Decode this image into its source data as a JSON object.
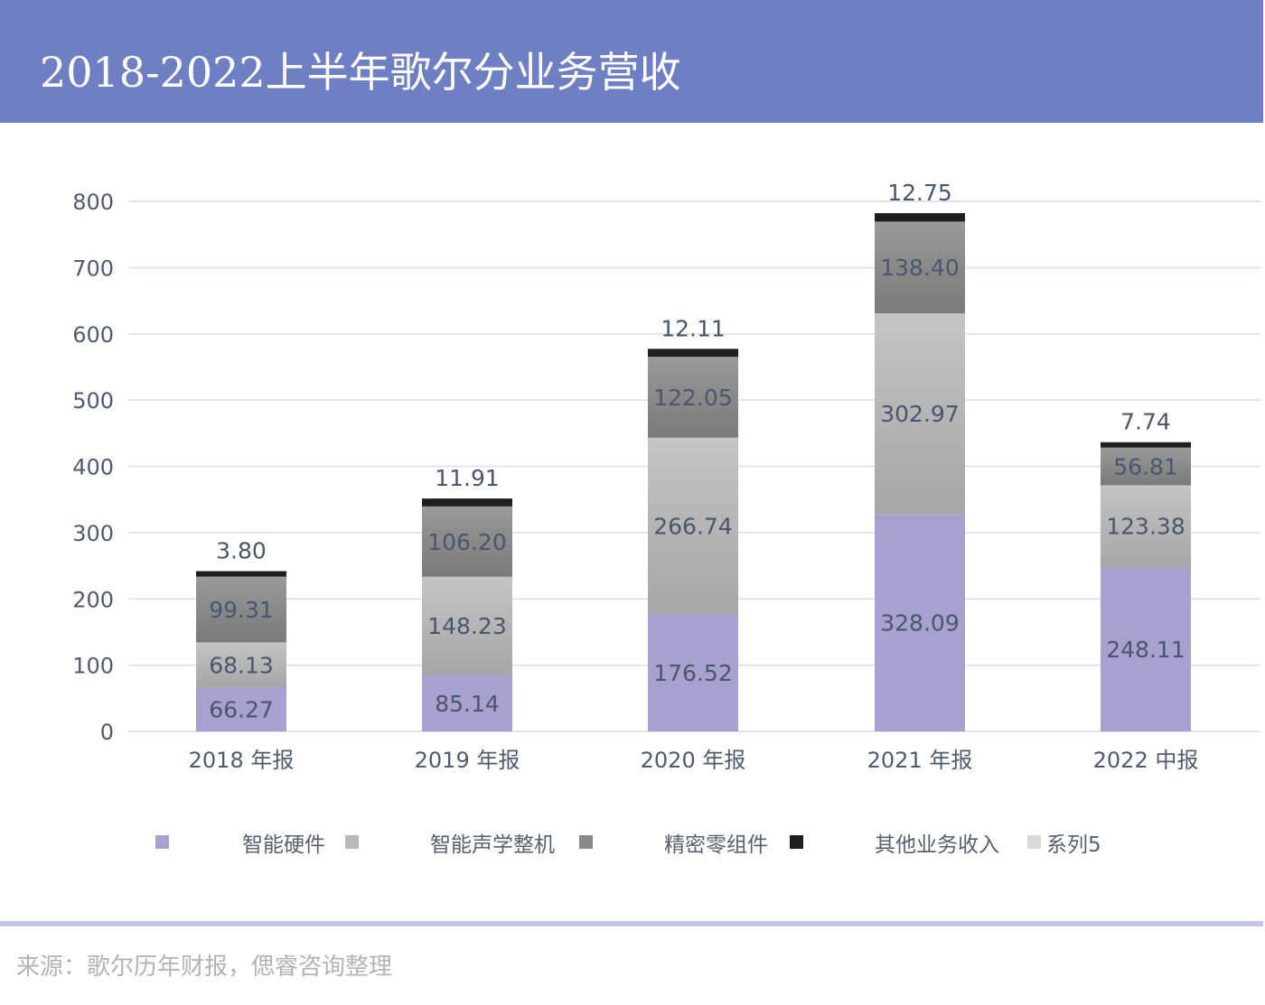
{
  "header": {
    "title": "2018-2022上半年歌尔分业务营收"
  },
  "source": "来源：歌尔历年财报，偲睿咨询整理",
  "chart_data": {
    "type": "bar",
    "stacked": true,
    "title": "2018-2022上半年歌尔分业务营收",
    "xlabel": "",
    "ylabel": "",
    "ylim": [
      0,
      800
    ],
    "yticks": [
      0,
      100,
      200,
      300,
      400,
      500,
      600,
      700,
      800
    ],
    "grid": true,
    "legend_position": "bottom",
    "categories": [
      "2018 年报",
      "2019 年报",
      "2020 年报",
      "2021 年报",
      "2022 中报"
    ],
    "series": [
      {
        "name": "智能硬件",
        "color": "#a8a0cf",
        "values": [
          66.27,
          85.14,
          176.52,
          328.09,
          248.11
        ]
      },
      {
        "name": "智能声学整机",
        "color": "#b9b9b9",
        "values": [
          68.13,
          148.23,
          266.74,
          302.97,
          123.38
        ]
      },
      {
        "name": "精密零组件",
        "color": "#8a8a8a",
        "values": [
          99.31,
          106.2,
          122.05,
          138.4,
          56.81
        ]
      },
      {
        "name": "其他业务收入",
        "color": "#1f1f1f",
        "values": [
          3.8,
          11.91,
          12.11,
          12.75,
          7.74
        ]
      },
      {
        "name": "系列5",
        "color": "#d9d9d9",
        "values": [
          0,
          0,
          0,
          0,
          0
        ]
      }
    ],
    "data_labels": {
      "智能硬件": [
        "66.27",
        "85.14",
        "176.52",
        "328.09",
        "248.11"
      ],
      "智能声学整机": [
        "68.13",
        "148.23",
        "266.74",
        "302.97",
        "123.38"
      ],
      "精密零组件": [
        "99.31",
        "106.20",
        "122.05",
        "138.40",
        "56.81"
      ],
      "其他业务收入": [
        "3.80",
        "11.91",
        "12.11",
        "12.75",
        "7.74"
      ]
    }
  },
  "legend": [
    {
      "label": "智能硬件",
      "color": "#a8a0cf"
    },
    {
      "label": "智能声学整机",
      "color": "#b9b9b9"
    },
    {
      "label": "精密零组件",
      "color": "#8a8a8a"
    },
    {
      "label": "其他业务收入",
      "color": "#1f1f1f"
    },
    {
      "label": "系列5",
      "color": "#d9d9d9"
    }
  ]
}
